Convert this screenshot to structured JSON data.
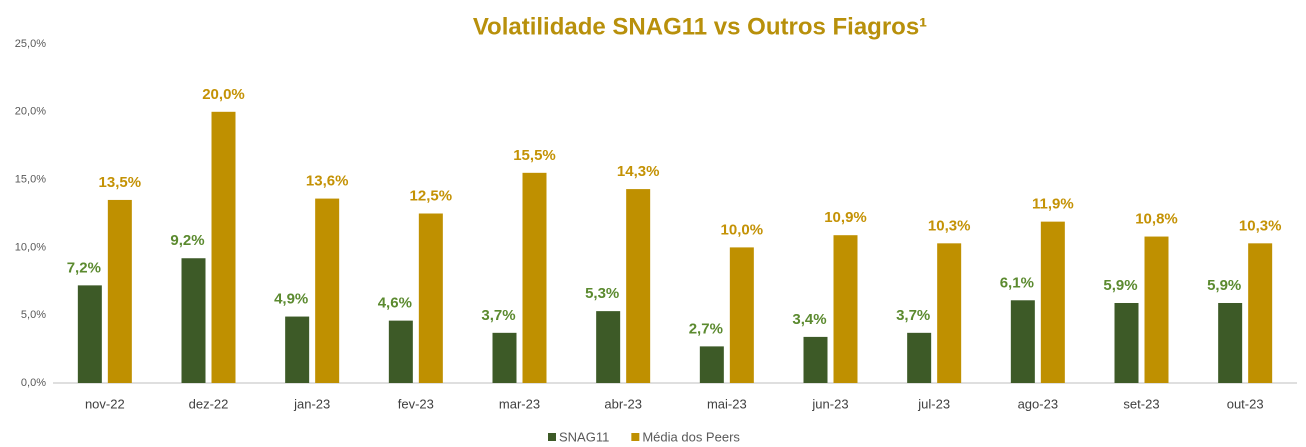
{
  "chart_data": {
    "type": "bar",
    "title": "Volatilidade SNAG11 vs Outros Fiagros¹",
    "categories": [
      "nov-22",
      "dez-22",
      "jan-23",
      "fev-23",
      "mar-23",
      "abr-23",
      "mai-23",
      "jun-23",
      "jul-23",
      "ago-23",
      "set-23",
      "out-23"
    ],
    "series": [
      {
        "name": "SNAG11",
        "color": "#3d5a27",
        "label_color": "#5b8a2f",
        "values": [
          7.2,
          9.2,
          4.9,
          4.6,
          3.7,
          5.3,
          2.7,
          3.4,
          3.7,
          6.1,
          5.9,
          5.9
        ],
        "value_labels": [
          "7,2%",
          "9,2%",
          "4,9%",
          "4,6%",
          "3,7%",
          "5,3%",
          "2,7%",
          "3,4%",
          "3,7%",
          "6,1%",
          "5,9%",
          "5,9%"
        ]
      },
      {
        "name": "Média dos Peers",
        "color": "#bf9000",
        "label_color": "#c49205",
        "values": [
          13.5,
          20.0,
          13.6,
          12.5,
          15.5,
          14.3,
          10.0,
          10.9,
          10.3,
          11.9,
          10.8,
          10.3
        ],
        "value_labels": [
          "13,5%",
          "20,0%",
          "13,6%",
          "12,5%",
          "15,5%",
          "14,3%",
          "10,0%",
          "10,9%",
          "10,3%",
          "11,9%",
          "10,8%",
          "10,3%"
        ]
      }
    ],
    "ylim": [
      0,
      25
    ],
    "yticks": [
      {
        "value": 0,
        "label": "0,0%"
      },
      {
        "value": 5,
        "label": "5,0%"
      },
      {
        "value": 10,
        "label": "10,0%"
      },
      {
        "value": 15,
        "label": "15,0%"
      },
      {
        "value": 20,
        "label": "20,0%"
      },
      {
        "value": 25,
        "label": "25,0%"
      }
    ],
    "grid": false,
    "legend": "bottom"
  }
}
